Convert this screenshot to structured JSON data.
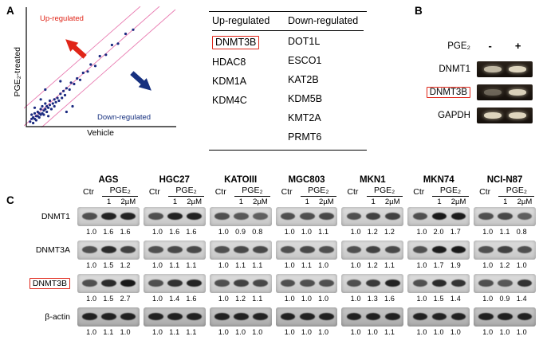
{
  "figure": {
    "panel_a_label": "A",
    "panel_b_label": "B",
    "panel_c_label": "C"
  },
  "panelA": {
    "scatter": {
      "up_annotation": "Up-regulated",
      "down_annotation": "Down-regulated",
      "xlabel": "Vehicle",
      "ylabel": "PGE₂-treated"
    },
    "table": {
      "headers": [
        "Up-regulated",
        "Down-regulated"
      ],
      "up_genes": [
        "DNMT3B",
        "HDAC8",
        "KDM1A",
        "KDM4C"
      ],
      "down_genes": [
        "DOT1L",
        "ESCO1",
        "KAT2B",
        "KDM5B",
        "KMT2A",
        "PRMT6"
      ],
      "highlighted_gene": "DNMT3B"
    }
  },
  "panelB": {
    "pge2_label": "PGE₂",
    "minus": "-",
    "plus": "+",
    "rows": [
      "DNMT1",
      "DNMT3B",
      "GAPDH"
    ],
    "highlighted": "DNMT3B"
  },
  "panelC": {
    "cell_lines": [
      "AGS",
      "HGC27",
      "KATOIII",
      "MGC803",
      "MKN1",
      "MKN74",
      "NCI-N87"
    ],
    "ctr_label": "Ctr",
    "pge2_label": "PGE₂",
    "dose_labels": [
      "1",
      "2µM"
    ],
    "proteins": [
      "DNMT1",
      "DNMT3A",
      "DNMT3B",
      "β-actin"
    ],
    "highlighted": "DNMT3B",
    "values": [
      [
        [
          "1.0",
          "1.6",
          "1.6"
        ],
        [
          "1.0",
          "1.6",
          "1.6"
        ],
        [
          "1.0",
          "0.9",
          "0.8"
        ],
        [
          "1.0",
          "1.0",
          "1.1"
        ],
        [
          "1.0",
          "1.2",
          "1.2"
        ],
        [
          "1.0",
          "2.0",
          "1.7"
        ],
        [
          "1.0",
          "1.1",
          "0.8"
        ]
      ],
      [
        [
          "1.0",
          "1.5",
          "1.2"
        ],
        [
          "1.0",
          "1.1",
          "1.1"
        ],
        [
          "1.0",
          "1.1",
          "1.1"
        ],
        [
          "1.0",
          "1.1",
          "1.0"
        ],
        [
          "1.0",
          "1.2",
          "1.1"
        ],
        [
          "1.0",
          "1.7",
          "1.9"
        ],
        [
          "1.0",
          "1.2",
          "1.0"
        ]
      ],
      [
        [
          "1.0",
          "1.5",
          "2.7"
        ],
        [
          "1.0",
          "1.4",
          "1.6"
        ],
        [
          "1.0",
          "1.2",
          "1.1"
        ],
        [
          "1.0",
          "1.0",
          "1.0"
        ],
        [
          "1.0",
          "1.3",
          "1.6"
        ],
        [
          "1.0",
          "1.5",
          "1.4"
        ],
        [
          "1.0",
          "0.9",
          "1.4"
        ]
      ],
      [
        [
          "1.0",
          "1.1",
          "1.0"
        ],
        [
          "1.0",
          "1.1",
          "1.1"
        ],
        [
          "1.0",
          "1.0",
          "1.0"
        ],
        [
          "1.0",
          "1.0",
          "1.0"
        ],
        [
          "1.0",
          "1.0",
          "1.1"
        ],
        [
          "1.0",
          "1.0",
          "1.0"
        ],
        [
          "1.0",
          "1.0",
          "1.0"
        ]
      ]
    ]
  },
  "chart_data": {
    "type": "scatter",
    "title": "",
    "xlabel": "Vehicle",
    "ylabel": "PGE₂-treated",
    "annotations": [
      "Up-regulated",
      "Down-regulated"
    ],
    "xlim": [
      0,
      100
    ],
    "ylim": [
      0,
      100
    ],
    "points": [
      [
        2,
        3
      ],
      [
        3,
        5
      ],
      [
        3,
        8
      ],
      [
        4,
        2
      ],
      [
        4,
        6
      ],
      [
        5,
        5
      ],
      [
        5,
        9
      ],
      [
        6,
        4
      ],
      [
        6,
        7
      ],
      [
        7,
        7
      ],
      [
        7,
        10
      ],
      [
        8,
        6
      ],
      [
        8,
        9
      ],
      [
        9,
        8
      ],
      [
        9,
        12
      ],
      [
        10,
        9
      ],
      [
        10,
        14
      ],
      [
        11,
        8
      ],
      [
        11,
        11
      ],
      [
        12,
        12
      ],
      [
        12,
        16
      ],
      [
        13,
        10
      ],
      [
        13,
        14
      ],
      [
        14,
        13
      ],
      [
        14,
        7
      ],
      [
        15,
        15
      ],
      [
        15,
        18
      ],
      [
        16,
        12
      ],
      [
        17,
        16
      ],
      [
        18,
        14
      ],
      [
        18,
        19
      ],
      [
        19,
        17
      ],
      [
        20,
        20
      ],
      [
        21,
        18
      ],
      [
        22,
        23
      ],
      [
        23,
        20
      ],
      [
        24,
        25
      ],
      [
        25,
        22
      ],
      [
        26,
        10
      ],
      [
        26,
        27
      ],
      [
        28,
        26
      ],
      [
        29,
        31
      ],
      [
        30,
        14
      ],
      [
        31,
        30
      ],
      [
        33,
        34
      ],
      [
        35,
        33
      ],
      [
        37,
        38
      ],
      [
        40,
        39
      ],
      [
        42,
        44
      ],
      [
        45,
        43
      ],
      [
        48,
        50
      ],
      [
        52,
        51
      ],
      [
        56,
        58
      ],
      [
        60,
        59
      ],
      [
        65,
        66
      ],
      [
        70,
        69
      ],
      [
        12,
        26
      ],
      [
        9,
        19
      ],
      [
        5,
        13
      ],
      [
        22,
        32
      ]
    ]
  },
  "colors": {
    "up_red": "#e02518",
    "down_blue": "#16307f",
    "diagonal_pink": "#e87ab0",
    "highlight_box": "#e02518"
  }
}
